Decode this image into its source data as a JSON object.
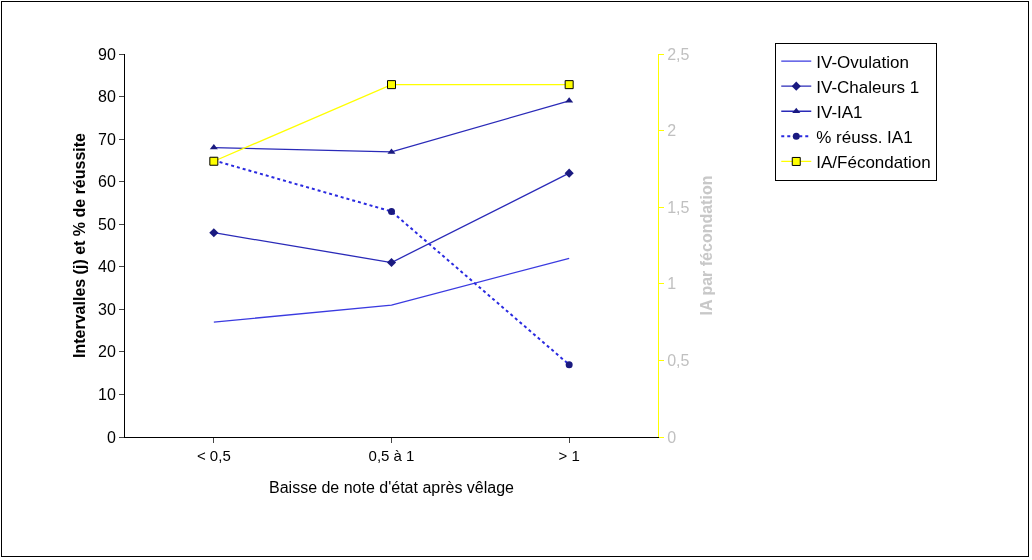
{
  "chart_data": {
    "type": "line",
    "xlabel": "Baisse de note d'état après vêlage",
    "ylabel": "Intervalles (j) et % de réussite",
    "y2label": "IA par fécondation",
    "categories": [
      "< 0,5",
      "0,5 à 1",
      "> 1"
    ],
    "series": [
      {
        "name": "IV-Ovulation",
        "color": "#3a3ae0",
        "values": [
          27,
          31,
          42
        ],
        "marker": "none",
        "line_style": "solid"
      },
      {
        "name": "IV-Chaleurs 1",
        "color": "#2a2ab8",
        "values": [
          48,
          41,
          62
        ],
        "marker": "diamond",
        "line_style": "solid"
      },
      {
        "name": "IV-IA1",
        "color": "#2a2ab8",
        "values": [
          68,
          67,
          79
        ],
        "marker": "triangle",
        "line_style": "solid"
      },
      {
        "name": "% réuss. IA1",
        "color": "#2a2ae0",
        "values": [
          65,
          53,
          17
        ],
        "marker": "circle",
        "line_style": "dotted"
      },
      {
        "name": "IA/Fécondation",
        "color": "#ffff00",
        "values": [
          1.8,
          2.3,
          2.3
        ],
        "marker": "square",
        "line_style": "solid",
        "axis": "y2"
      }
    ],
    "ylim": [
      0,
      90
    ],
    "yticks": [
      0,
      10,
      20,
      30,
      40,
      50,
      60,
      70,
      80,
      90
    ],
    "y2lim": [
      0,
      2.5
    ],
    "y2ticks": [
      0,
      {
        "value": 0.5,
        "label": "0,5"
      },
      1,
      {
        "value": 1.5,
        "label": "1,5"
      },
      2,
      {
        "value": 2.5,
        "label": "2,5"
      }
    ],
    "grid": false,
    "legend": "top right"
  }
}
